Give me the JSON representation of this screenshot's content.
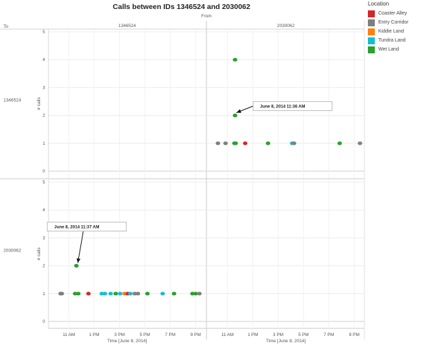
{
  "chart_data": {
    "type": "scatter",
    "title": "Calls between IDs 1346524 and 2030062",
    "column_header": "From",
    "row_header": "To",
    "columns": [
      "1346524",
      "2030062"
    ],
    "rows": [
      "1346524",
      "2030062"
    ],
    "ylabel": "# calls",
    "xlabel": "Time [June 8, 2014]",
    "ylim": [
      0,
      5
    ],
    "yticks": [
      0,
      1,
      2,
      3,
      4,
      5
    ],
    "xticks": [
      {
        "hour": 11,
        "label": "11 AM"
      },
      {
        "hour": 13,
        "label": "1 PM"
      },
      {
        "hour": 15,
        "label": "3 PM"
      },
      {
        "hour": 17,
        "label": "5 PM"
      },
      {
        "hour": 19,
        "label": "7 PM"
      },
      {
        "hour": 21,
        "label": "9 PM"
      }
    ],
    "xlim_hours": [
      9.4,
      21.8
    ],
    "legend": {
      "title": "Location",
      "items": [
        {
          "name": "Coaster Alley",
          "color": "#d62728"
        },
        {
          "name": "Entry Corridor",
          "color": "#7f7f7f"
        },
        {
          "name": "Kiddie Land",
          "color": "#ff7f0e"
        },
        {
          "name": "Tundra Land",
          "color": "#17becf"
        },
        {
          "name": "Wet Land",
          "color": "#2ca02c"
        }
      ]
    },
    "panels": [
      {
        "from": "2030062",
        "to": "1346524",
        "annotation": {
          "text": "June 8, 2014 11:36 AM",
          "hour": 11.6,
          "calls": 2
        },
        "points": [
          {
            "hour": 10.25,
            "calls": 1,
            "location": "Entry Corridor"
          },
          {
            "hour": 10.85,
            "calls": 1,
            "location": "Entry Corridor"
          },
          {
            "hour": 11.55,
            "calls": 1,
            "location": "Wet Land"
          },
          {
            "hour": 11.65,
            "calls": 1,
            "location": "Wet Land"
          },
          {
            "hour": 12.4,
            "calls": 1,
            "location": "Coaster Alley"
          },
          {
            "hour": 14.2,
            "calls": 1,
            "location": "Wet Land"
          },
          {
            "hour": 16.1,
            "calls": 1,
            "location": "Tundra Land"
          },
          {
            "hour": 16.25,
            "calls": 1,
            "location": "Entry Corridor"
          },
          {
            "hour": 19.85,
            "calls": 1,
            "location": "Wet Land"
          },
          {
            "hour": 21.45,
            "calls": 1,
            "location": "Entry Corridor"
          },
          {
            "hour": 11.6,
            "calls": 2,
            "location": "Wet Land"
          },
          {
            "hour": 11.6,
            "calls": 4,
            "location": "Wet Land"
          }
        ]
      },
      {
        "from": "1346524",
        "to": "2030062",
        "annotation": {
          "text": "June 8, 2014 11:37 AM",
          "hour": 11.6,
          "calls": 2
        },
        "points": [
          {
            "hour": 10.35,
            "calls": 1,
            "location": "Entry Corridor"
          },
          {
            "hour": 10.45,
            "calls": 1,
            "location": "Entry Corridor"
          },
          {
            "hour": 11.5,
            "calls": 1,
            "location": "Wet Land"
          },
          {
            "hour": 11.75,
            "calls": 1,
            "location": "Wet Land"
          },
          {
            "hour": 12.55,
            "calls": 1,
            "location": "Coaster Alley"
          },
          {
            "hour": 13.6,
            "calls": 1,
            "location": "Tundra Land"
          },
          {
            "hour": 13.85,
            "calls": 1,
            "location": "Tundra Land"
          },
          {
            "hour": 14.3,
            "calls": 1,
            "location": "Tundra Land"
          },
          {
            "hour": 14.7,
            "calls": 1,
            "location": "Wet Land"
          },
          {
            "hour": 15.05,
            "calls": 1,
            "location": "Tundra Land"
          },
          {
            "hour": 15.4,
            "calls": 1,
            "location": "Kiddie Land"
          },
          {
            "hour": 15.65,
            "calls": 1,
            "location": "Coaster Alley"
          },
          {
            "hour": 15.85,
            "calls": 1,
            "location": "Tundra Land"
          },
          {
            "hour": 16.2,
            "calls": 1,
            "location": "Entry Corridor"
          },
          {
            "hour": 16.45,
            "calls": 1,
            "location": "Entry Corridor"
          },
          {
            "hour": 17.2,
            "calls": 1,
            "location": "Wet Land"
          },
          {
            "hour": 18.4,
            "calls": 1,
            "location": "Tundra Land"
          },
          {
            "hour": 19.3,
            "calls": 1,
            "location": "Wet Land"
          },
          {
            "hour": 20.75,
            "calls": 1,
            "location": "Wet Land"
          },
          {
            "hour": 21.0,
            "calls": 1,
            "location": "Wet Land"
          },
          {
            "hour": 21.3,
            "calls": 1,
            "location": "Entry Corridor"
          },
          {
            "hour": 11.6,
            "calls": 2,
            "location": "Wet Land"
          }
        ]
      }
    ]
  }
}
